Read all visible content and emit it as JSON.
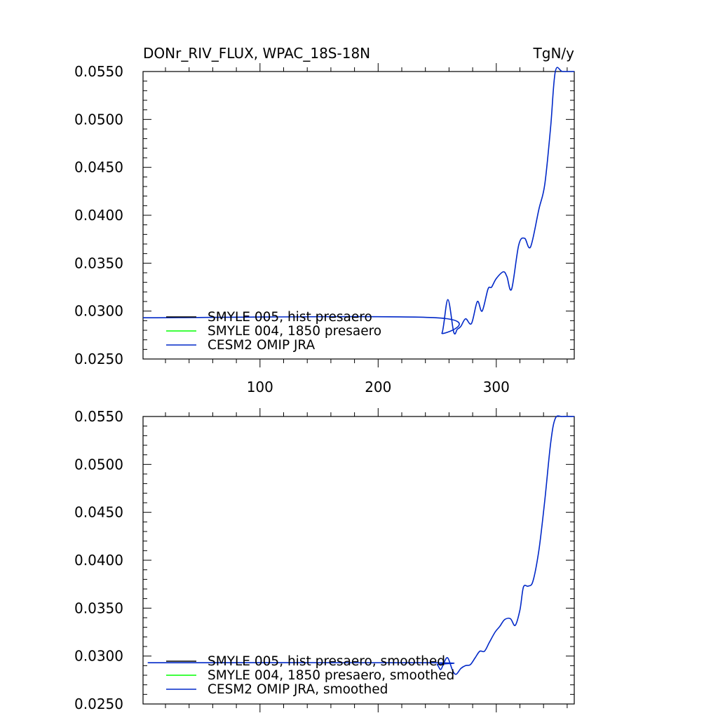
{
  "chart_data": [
    {
      "type": "line",
      "title": "DONr_RIV_FLUX, WPAC_18S-18N",
      "units": "TgN/y",
      "xlim": [
        1,
        366
      ],
      "ylim": [
        0.025,
        0.055
      ],
      "x_ticks": [
        100,
        200,
        300
      ],
      "x_tick_labels": [
        "100",
        "200",
        "300"
      ],
      "y_ticks": [
        0.025,
        0.03,
        0.035,
        0.04,
        0.045,
        0.05,
        0.055
      ],
      "y_tick_labels": [
        "0.0250",
        "0.0300",
        "0.0350",
        "0.0400",
        "0.0450",
        "0.0500",
        "0.0550"
      ],
      "legend_position": "bottom-left",
      "grid": false,
      "series": [
        {
          "name": "SMYLE 005, hist presaero",
          "color": "#000000",
          "x": [],
          "y": []
        },
        {
          "name": "SMYLE 004, 1850 presaero",
          "color": "#00ff00",
          "x": [],
          "y": []
        },
        {
          "name": "CESM2 OMIP JRA",
          "color": "#0028c8",
          "x": [
            1,
            249,
            254,
            259,
            264,
            267,
            270,
            274,
            279,
            284,
            288,
            293,
            296,
            300,
            306,
            309,
            313,
            319,
            324,
            329,
            336,
            341,
            346,
            350,
            356,
            366
          ],
          "y": [
            0.0293,
            0.0293,
            0.0277,
            0.0312,
            0.0278,
            0.0281,
            0.0284,
            0.0292,
            0.0287,
            0.031,
            0.03,
            0.0323,
            0.0325,
            0.0334,
            0.0341,
            0.0336,
            0.0323,
            0.0369,
            0.0376,
            0.0367,
            0.0406,
            0.0432,
            0.0492,
            0.055,
            0.055,
            0.055
          ]
        }
      ]
    },
    {
      "type": "line",
      "xlim": [
        1,
        366
      ],
      "ylim": [
        0.025,
        0.055
      ],
      "x_ticks": [
        100,
        200,
        300
      ],
      "y_ticks": [
        0.025,
        0.03,
        0.035,
        0.04,
        0.045,
        0.05,
        0.055
      ],
      "y_tick_labels": [
        "0.0250",
        "0.0300",
        "0.0350",
        "0.0400",
        "0.0450",
        "0.0500",
        "0.0550"
      ],
      "legend_position": "bottom-left",
      "grid": false,
      "series": [
        {
          "name": "SMYLE 005, hist presaero, smoothed",
          "color": "#000000",
          "x": [],
          "y": []
        },
        {
          "name": "SMYLE 004, 1850 presaero, smoothed",
          "color": "#00ff00",
          "x": [],
          "y": []
        },
        {
          "name": "CESM2 OMIP JRA, smoothed",
          "color": "#0028c8",
          "x": [
            5,
            245,
            250,
            253,
            256,
            259,
            263,
            266,
            270,
            274,
            278,
            282,
            286,
            290,
            294,
            299,
            303,
            307,
            312,
            316,
            320,
            323,
            327,
            331,
            336,
            341,
            346,
            350,
            356,
            366
          ],
          "y": [
            0.0293,
            0.0293,
            0.0291,
            0.0286,
            0.0294,
            0.0298,
            0.0285,
            0.0281,
            0.0287,
            0.029,
            0.0291,
            0.0298,
            0.0305,
            0.0305,
            0.0314,
            0.0325,
            0.0331,
            0.0338,
            0.0339,
            0.0332,
            0.0348,
            0.0372,
            0.0373,
            0.0378,
            0.041,
            0.0462,
            0.0522,
            0.0548,
            0.055,
            0.055
          ]
        }
      ]
    }
  ]
}
